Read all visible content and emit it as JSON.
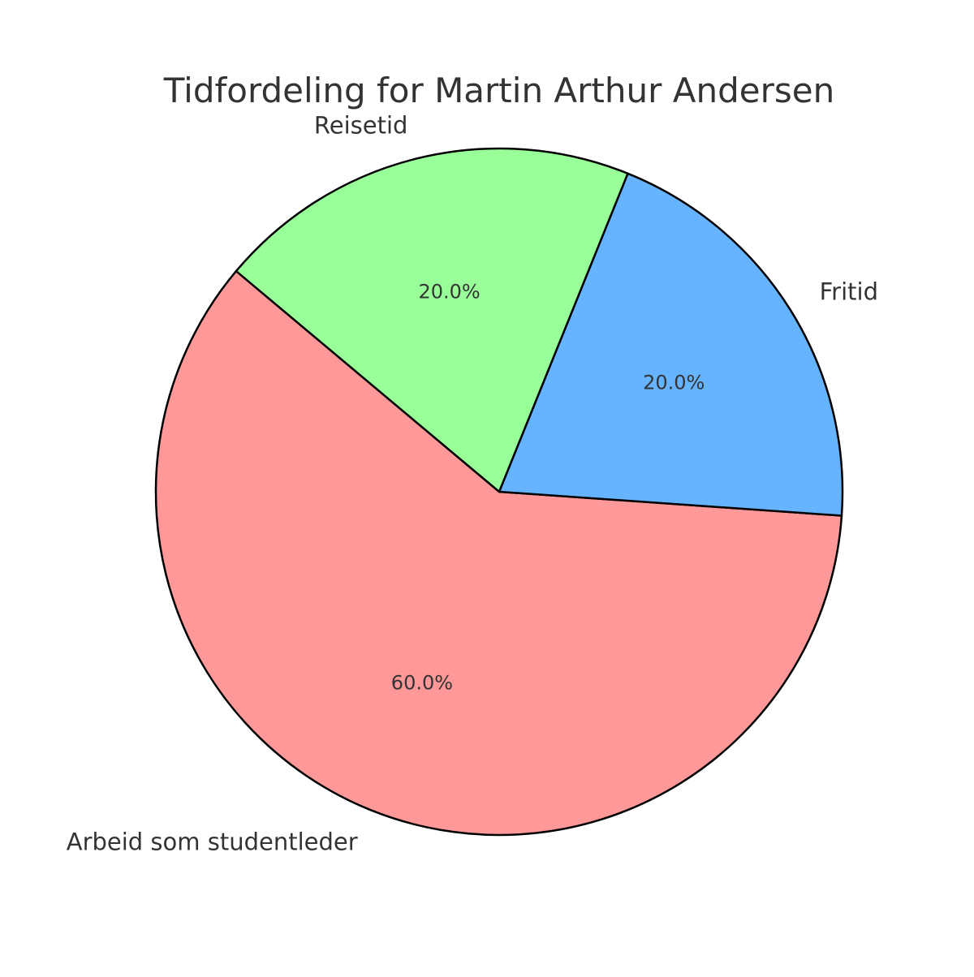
{
  "chart_data": {
    "type": "pie",
    "title": "Tidfordeling for Martin Arthur Andersen",
    "slices": [
      {
        "label": "Arbeid som studentleder",
        "value": 60,
        "pct_text": "60.0%",
        "color": "#ff9999"
      },
      {
        "label": "Fritid",
        "value": 20,
        "pct_text": "20.0%",
        "color": "#66b3ff"
      },
      {
        "label": "Reisetid",
        "value": 20,
        "pct_text": "20.0%",
        "color": "#99ff99"
      }
    ],
    "start_angle_deg": 140,
    "direction": "counterclockwise",
    "edge_color": "#000000"
  }
}
